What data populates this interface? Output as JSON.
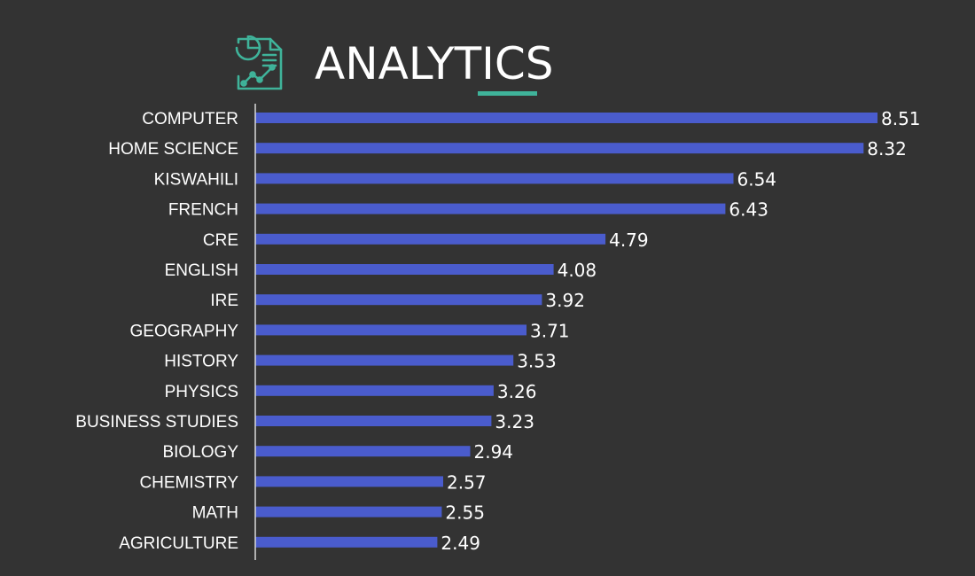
{
  "header": {
    "title": "ANALYTICS",
    "icon": "analytics-report-icon",
    "accent_color": "#3fb39a"
  },
  "chart_data": {
    "type": "bar",
    "orientation": "horizontal",
    "categories": [
      "COMPUTER",
      "HOME SCIENCE",
      "KISWAHILI",
      "FRENCH",
      "CRE",
      "ENGLISH",
      "IRE",
      "GEOGRAPHY",
      "HISTORY",
      "PHYSICS",
      "BUSINESS STUDIES",
      "BIOLOGY",
      "CHEMISTRY",
      "MATH",
      "AGRICULTURE"
    ],
    "values": [
      8.51,
      8.32,
      6.54,
      6.43,
      4.79,
      4.08,
      3.92,
      3.71,
      3.53,
      3.26,
      3.23,
      2.94,
      2.57,
      2.55,
      2.49
    ],
    "value_labels": [
      "8.51",
      "8.32",
      "6.54",
      "6.43",
      "4.79",
      "4.08",
      "3.92",
      "3.71",
      "3.53",
      "3.26",
      "3.23",
      "2.94",
      "2.57",
      "2.55",
      "2.49"
    ],
    "title": "",
    "xlabel": "",
    "ylabel": "",
    "xlim": [
      0,
      8.51
    ],
    "grid": false,
    "legend": "none",
    "bar_color": "#4a5ccd",
    "label_color": "#ffffff",
    "background": "#333333"
  }
}
